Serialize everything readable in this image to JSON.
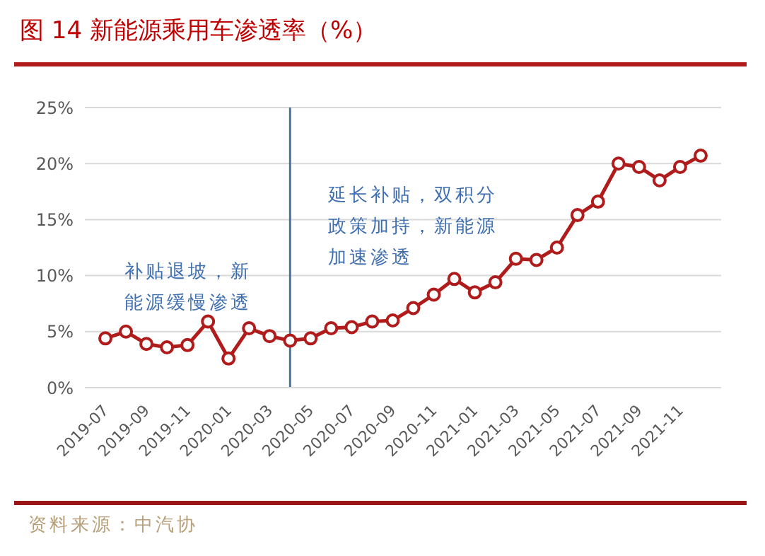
{
  "chart_data": {
    "type": "line",
    "title": "图 14 新能源乘用车渗透率（%）",
    "x": [
      "2019-07",
      "2019-08",
      "2019-09",
      "2019-10",
      "2019-11",
      "2019-12",
      "2020-01",
      "2020-02",
      "2020-03",
      "2020-04",
      "2020-05",
      "2020-06",
      "2020-07",
      "2020-08",
      "2020-09",
      "2020-10",
      "2020-11",
      "2020-12",
      "2021-01",
      "2021-02",
      "2021-03",
      "2021-04",
      "2021-05",
      "2021-06",
      "2021-07",
      "2021-08",
      "2021-09",
      "2021-10",
      "2021-11",
      "2021-12"
    ],
    "series": [
      {
        "color": "#b01c1c",
        "values": [
          4.4,
          5.0,
          3.9,
          3.6,
          3.8,
          5.9,
          2.6,
          5.3,
          4.6,
          4.2,
          4.4,
          5.3,
          5.4,
          5.9,
          6.0,
          7.1,
          8.3,
          9.7,
          8.5,
          9.4,
          11.5,
          11.4,
          12.5,
          15.4,
          16.6,
          20.0,
          19.7,
          18.5,
          19.7,
          20.7
        ]
      }
    ],
    "xlim": [
      "2019-06",
      "2022-01"
    ],
    "xticks": [
      "2019-07",
      "2019-09",
      "2019-11",
      "2020-01",
      "2020-03",
      "2020-05",
      "2020-07",
      "2020-09",
      "2020-11",
      "2021-01",
      "2021-03",
      "2021-05",
      "2021-07",
      "2021-09",
      "2021-11"
    ],
    "ylim": [
      0,
      25
    ],
    "yticks": [
      {
        "value": 0,
        "label": "0%"
      },
      {
        "value": 5,
        "label": "5%"
      },
      {
        "value": 10,
        "label": "10%"
      },
      {
        "value": 15,
        "label": "15%"
      },
      {
        "value": 20,
        "label": "20%"
      },
      {
        "value": 25,
        "label": "25%"
      }
    ],
    "grid": "y",
    "marker": "circle",
    "line_style": "solid",
    "ref_lines": [
      {
        "axis": "x",
        "value": "2020-04",
        "color": "#4a72a8",
        "line_style": "solid"
      }
    ],
    "annotations": [
      "补贴退坡，新能源缓慢渗透",
      "延长补贴，双积分政策加持，新能源加速渗透",
      "资料来源：中汽协"
    ]
  }
}
